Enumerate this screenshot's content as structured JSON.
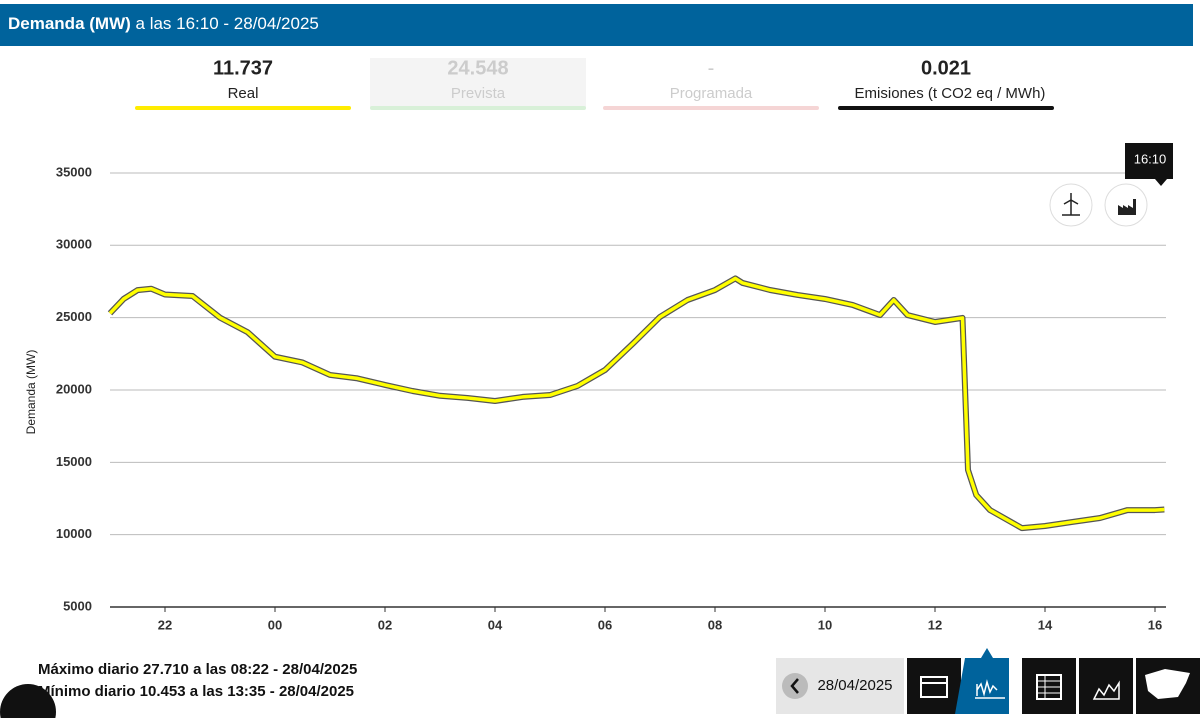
{
  "header": {
    "title": "Demanda (MW)",
    "subtitle": "a las 16:10 - 28/04/2025"
  },
  "stats": [
    {
      "value": "11.737",
      "label": "Real"
    },
    {
      "value": "24.548",
      "label": "Prevista"
    },
    {
      "value": "-",
      "label": "Programada"
    },
    {
      "value": "0.021",
      "label": "Emisiones (t CO2 eq / MWh)"
    }
  ],
  "tooltip": "16:10",
  "chart_data": {
    "type": "line",
    "y_label": "Demanda (MW)",
    "color": "#ffff00",
    "x": [
      -3,
      -2.75,
      -2.5,
      -2.25,
      -2,
      -1.5,
      -1,
      -0.5,
      0,
      0.5,
      1,
      1.5,
      2,
      2.5,
      3,
      3.5,
      4,
      4.5,
      5,
      5.5,
      6,
      6.5,
      7,
      7.5,
      8,
      8.37,
      8.5,
      9,
      9.5,
      10,
      10.5,
      11,
      11.25,
      11.5,
      12,
      12.5,
      12.6,
      12.75,
      13,
      13.58,
      14,
      14.5,
      15,
      15.5,
      16,
      16.17
    ],
    "values": [
      25300,
      26300,
      26900,
      27000,
      26600,
      26500,
      25000,
      24000,
      22300,
      21900,
      21040,
      20800,
      20350,
      19930,
      19600,
      19450,
      19240,
      19520,
      19650,
      20280,
      21380,
      23180,
      25050,
      26220,
      26910,
      27710,
      27400,
      26910,
      26570,
      26290,
      25880,
      25180,
      26220,
      25180,
      24700,
      24980,
      14470,
      12740,
      11700,
      10453,
      10600,
      10880,
      11150,
      11700,
      11700,
      11737
    ],
    "xlim": [
      -3,
      16.2
    ],
    "ylim": [
      5000,
      36000
    ],
    "xticks": [
      {
        "value": -2,
        "label": "22"
      },
      {
        "value": 0,
        "label": "00"
      },
      {
        "value": 2,
        "label": "02"
      },
      {
        "value": 4,
        "label": "04"
      },
      {
        "value": 6,
        "label": "06"
      },
      {
        "value": 8,
        "label": "08"
      },
      10,
      12,
      14,
      16
    ],
    "yticks": [
      5000,
      10000,
      15000,
      20000,
      25000,
      30000,
      35000
    ],
    "grid": true
  },
  "footer": {
    "max": "Máximo diario 27.710 a las 08:22 - 28/04/2025",
    "min": "Mínimo diario 10.453 a las 13:35 - 28/04/2025",
    "date": "28/04/2025"
  }
}
